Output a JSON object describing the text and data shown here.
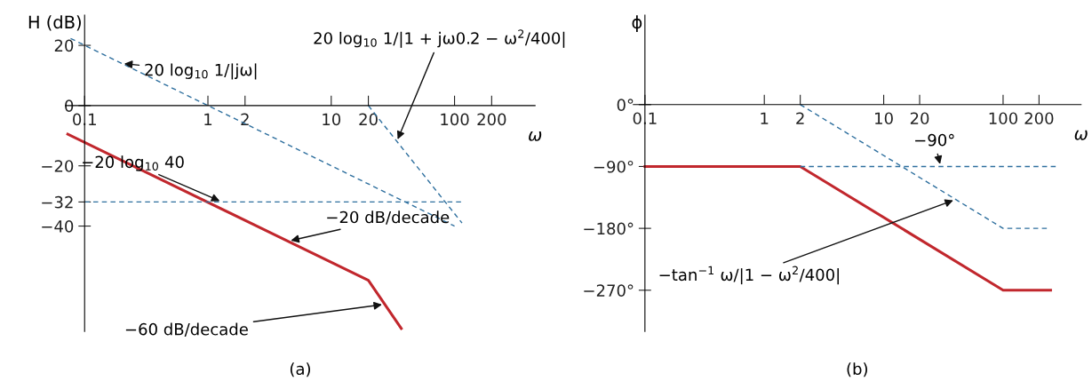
{
  "chart_data": [
    {
      "type": "line",
      "title": "(a)",
      "xlabel": "ω",
      "ylabel": "H (dB)",
      "log": "x",
      "xlim": [
        0.07,
        450
      ],
      "xticks": [
        0.1,
        1,
        2,
        10,
        20,
        100,
        200
      ],
      "ylim": [
        -75,
        30
      ],
      "yticks": [
        20,
        0,
        {
          "value": -20,
          "label": "−20"
        },
        {
          "value": -32,
          "label": "−32"
        },
        {
          "value": -40,
          "label": "−40"
        }
      ],
      "series": [
        {
          "color": "#c1272d",
          "line_style": "solid",
          "x": [
            0.073,
            20,
            37
          ],
          "values": [
            -9.5,
            -58,
            -74
          ]
        },
        {
          "color": "#2e6f9e",
          "line_style": "dashed",
          "x": [
            0.077,
            100
          ],
          "values": [
            22.3,
            -40
          ]
        },
        {
          "color": "#2e6f9e",
          "line_style": "dashed",
          "x": [
            0.1,
            115
          ],
          "values": [
            -32,
            -32
          ]
        },
        {
          "color": "#2e6f9e",
          "line_style": "dashed",
          "x": [
            20,
            115
          ],
          "values": [
            0,
            -39
          ]
        }
      ],
      "annotations": [
        {
          "text": "20 log$_{10}$ 1/|jω|",
          "x": 0.2,
          "y": 14
        },
        {
          "text": "20 log$_{10}$ 1/|1 + jω0.2 − ω$^{2}$/400|",
          "x": 34,
          "y": -12
        },
        {
          "text": "−20 log$_{10}$ 40",
          "x": 1.3,
          "y": -32
        },
        {
          "text": "−20 dB/decade",
          "x": 4.5,
          "y": -45
        },
        {
          "text": "−60 dB/decade",
          "x": 27,
          "y": -66
        }
      ]
    },
    {
      "type": "line",
      "title": "(b)",
      "xlabel": "ω",
      "ylabel": "ϕ",
      "log": "x",
      "xlim": [
        0.08,
        450
      ],
      "xticks": [
        0.1,
        1,
        2,
        10,
        20,
        100,
        200
      ],
      "ylim": [
        -330,
        130
      ],
      "yticks": [
        {
          "value": 0,
          "label": "0°"
        },
        {
          "value": -90,
          "label": "−90°"
        },
        {
          "value": -180,
          "label": "−180°"
        },
        {
          "value": -270,
          "label": "−270°"
        }
      ],
      "series": [
        {
          "color": "#c1272d",
          "line_style": "solid",
          "x": [
            0.1,
            2,
            100,
            250
          ],
          "values": [
            -90,
            -90,
            -270,
            -270
          ]
        },
        {
          "color": "#2e6f9e",
          "line_style": "dashed",
          "x": [
            2,
            280
          ],
          "values": [
            -90,
            -90
          ]
        },
        {
          "color": "#2e6f9e",
          "line_style": "dashed",
          "x": [
            2,
            100,
            240
          ],
          "values": [
            0,
            -180,
            -180
          ]
        }
      ],
      "annotations": [
        {
          "text": "−90°",
          "x": 30,
          "y": -90
        },
        {
          "text": "−tan$^{−1}$ ω/|1 − ω$^{2}$/400|",
          "x": 40,
          "y": -138
        }
      ]
    }
  ]
}
